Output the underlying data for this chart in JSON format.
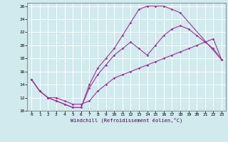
{
  "bg_color": "#d0eaee",
  "grid_color": "#ffffff",
  "line_color": "#993399",
  "xlabel": "Windchill (Refroidissement éolien,°C)",
  "xlim": [
    -0.5,
    23.5
  ],
  "ylim": [
    10,
    26.5
  ],
  "xticks": [
    0,
    1,
    2,
    3,
    4,
    5,
    6,
    7,
    8,
    9,
    10,
    11,
    12,
    13,
    14,
    15,
    16,
    17,
    18,
    19,
    20,
    21,
    22,
    23
  ],
  "yticks": [
    10,
    12,
    14,
    16,
    18,
    20,
    22,
    24,
    26
  ],
  "line_upper_x": [
    0,
    1,
    2,
    3,
    4,
    5,
    6,
    7,
    8,
    9,
    10,
    11,
    12,
    13,
    14,
    15,
    16,
    17,
    18,
    23
  ],
  "line_upper_y": [
    14.8,
    13.0,
    12.0,
    11.5,
    11.0,
    10.5,
    10.5,
    14.0,
    16.5,
    18.0,
    19.5,
    21.5,
    23.5,
    25.5,
    26.0,
    26.0,
    26.0,
    25.5,
    25.0,
    17.8
  ],
  "line_mid_x": [
    0,
    1,
    2,
    3,
    4,
    5,
    6,
    7,
    8,
    9,
    10,
    11,
    12,
    13,
    14,
    15,
    16,
    17,
    18,
    19,
    20,
    21,
    22,
    23
  ],
  "line_mid_y": [
    14.8,
    13.0,
    12.0,
    11.5,
    11.0,
    10.5,
    10.5,
    13.5,
    15.5,
    17.0,
    18.5,
    19.5,
    20.5,
    19.5,
    18.5,
    20.0,
    21.5,
    22.5,
    23.0,
    22.5,
    21.5,
    20.5,
    19.5,
    17.8
  ],
  "line_lower_x": [
    0,
    1,
    2,
    3,
    4,
    5,
    6,
    7,
    8,
    9,
    10,
    11,
    12,
    13,
    14,
    15,
    16,
    17,
    18,
    19,
    20,
    21,
    22,
    23
  ],
  "line_lower_y": [
    14.8,
    13.0,
    12.0,
    12.0,
    11.5,
    11.0,
    11.0,
    11.5,
    13.0,
    14.0,
    15.0,
    15.5,
    16.0,
    16.5,
    17.0,
    17.5,
    18.0,
    18.5,
    19.0,
    19.5,
    20.0,
    20.5,
    21.0,
    17.8
  ]
}
